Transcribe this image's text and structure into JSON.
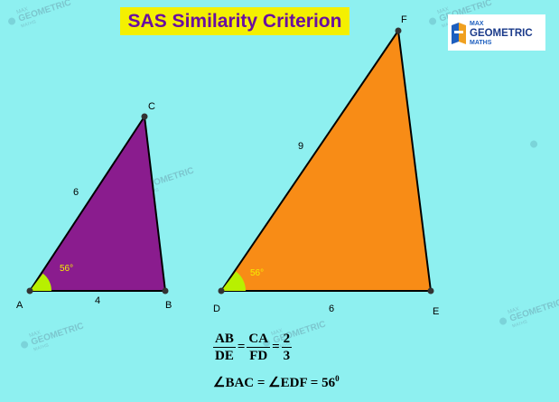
{
  "title": "SAS Similarity Criterion",
  "logo": {
    "line1": "MAX",
    "line2": "GEOMETRIC",
    "line3": "MATHS"
  },
  "watermark": {
    "line1": "MAX",
    "line2": "GEOMETRIC",
    "line3": "MATHS"
  },
  "colors": {
    "background": "#8ef0f0",
    "title_bg": "#f4f000",
    "title_text": "#6a0fa0",
    "triangle_small": "#8a1c8e",
    "triangle_large": "#f88c16",
    "angle_marker": "#b8f000",
    "angle_label": "#f4f000"
  },
  "triangle_small": {
    "vertices": {
      "a": "A",
      "b": "B",
      "c": "C"
    },
    "side_ab": "4",
    "side_ac": "6",
    "angle_a": "56°"
  },
  "triangle_large": {
    "vertices": {
      "d": "D",
      "e": "E",
      "f": "F"
    },
    "side_de": "6",
    "side_df": "9",
    "angle_d": "56°"
  },
  "formula": {
    "frac1_num": "AB",
    "frac1_den": "DE",
    "frac2_num": "CA",
    "frac2_den": "FD",
    "frac3_num": "2",
    "frac3_den": "3",
    "equals": "=",
    "angle_line": "∠BAC = ∠EDF = 56",
    "angle_sup": "0"
  }
}
